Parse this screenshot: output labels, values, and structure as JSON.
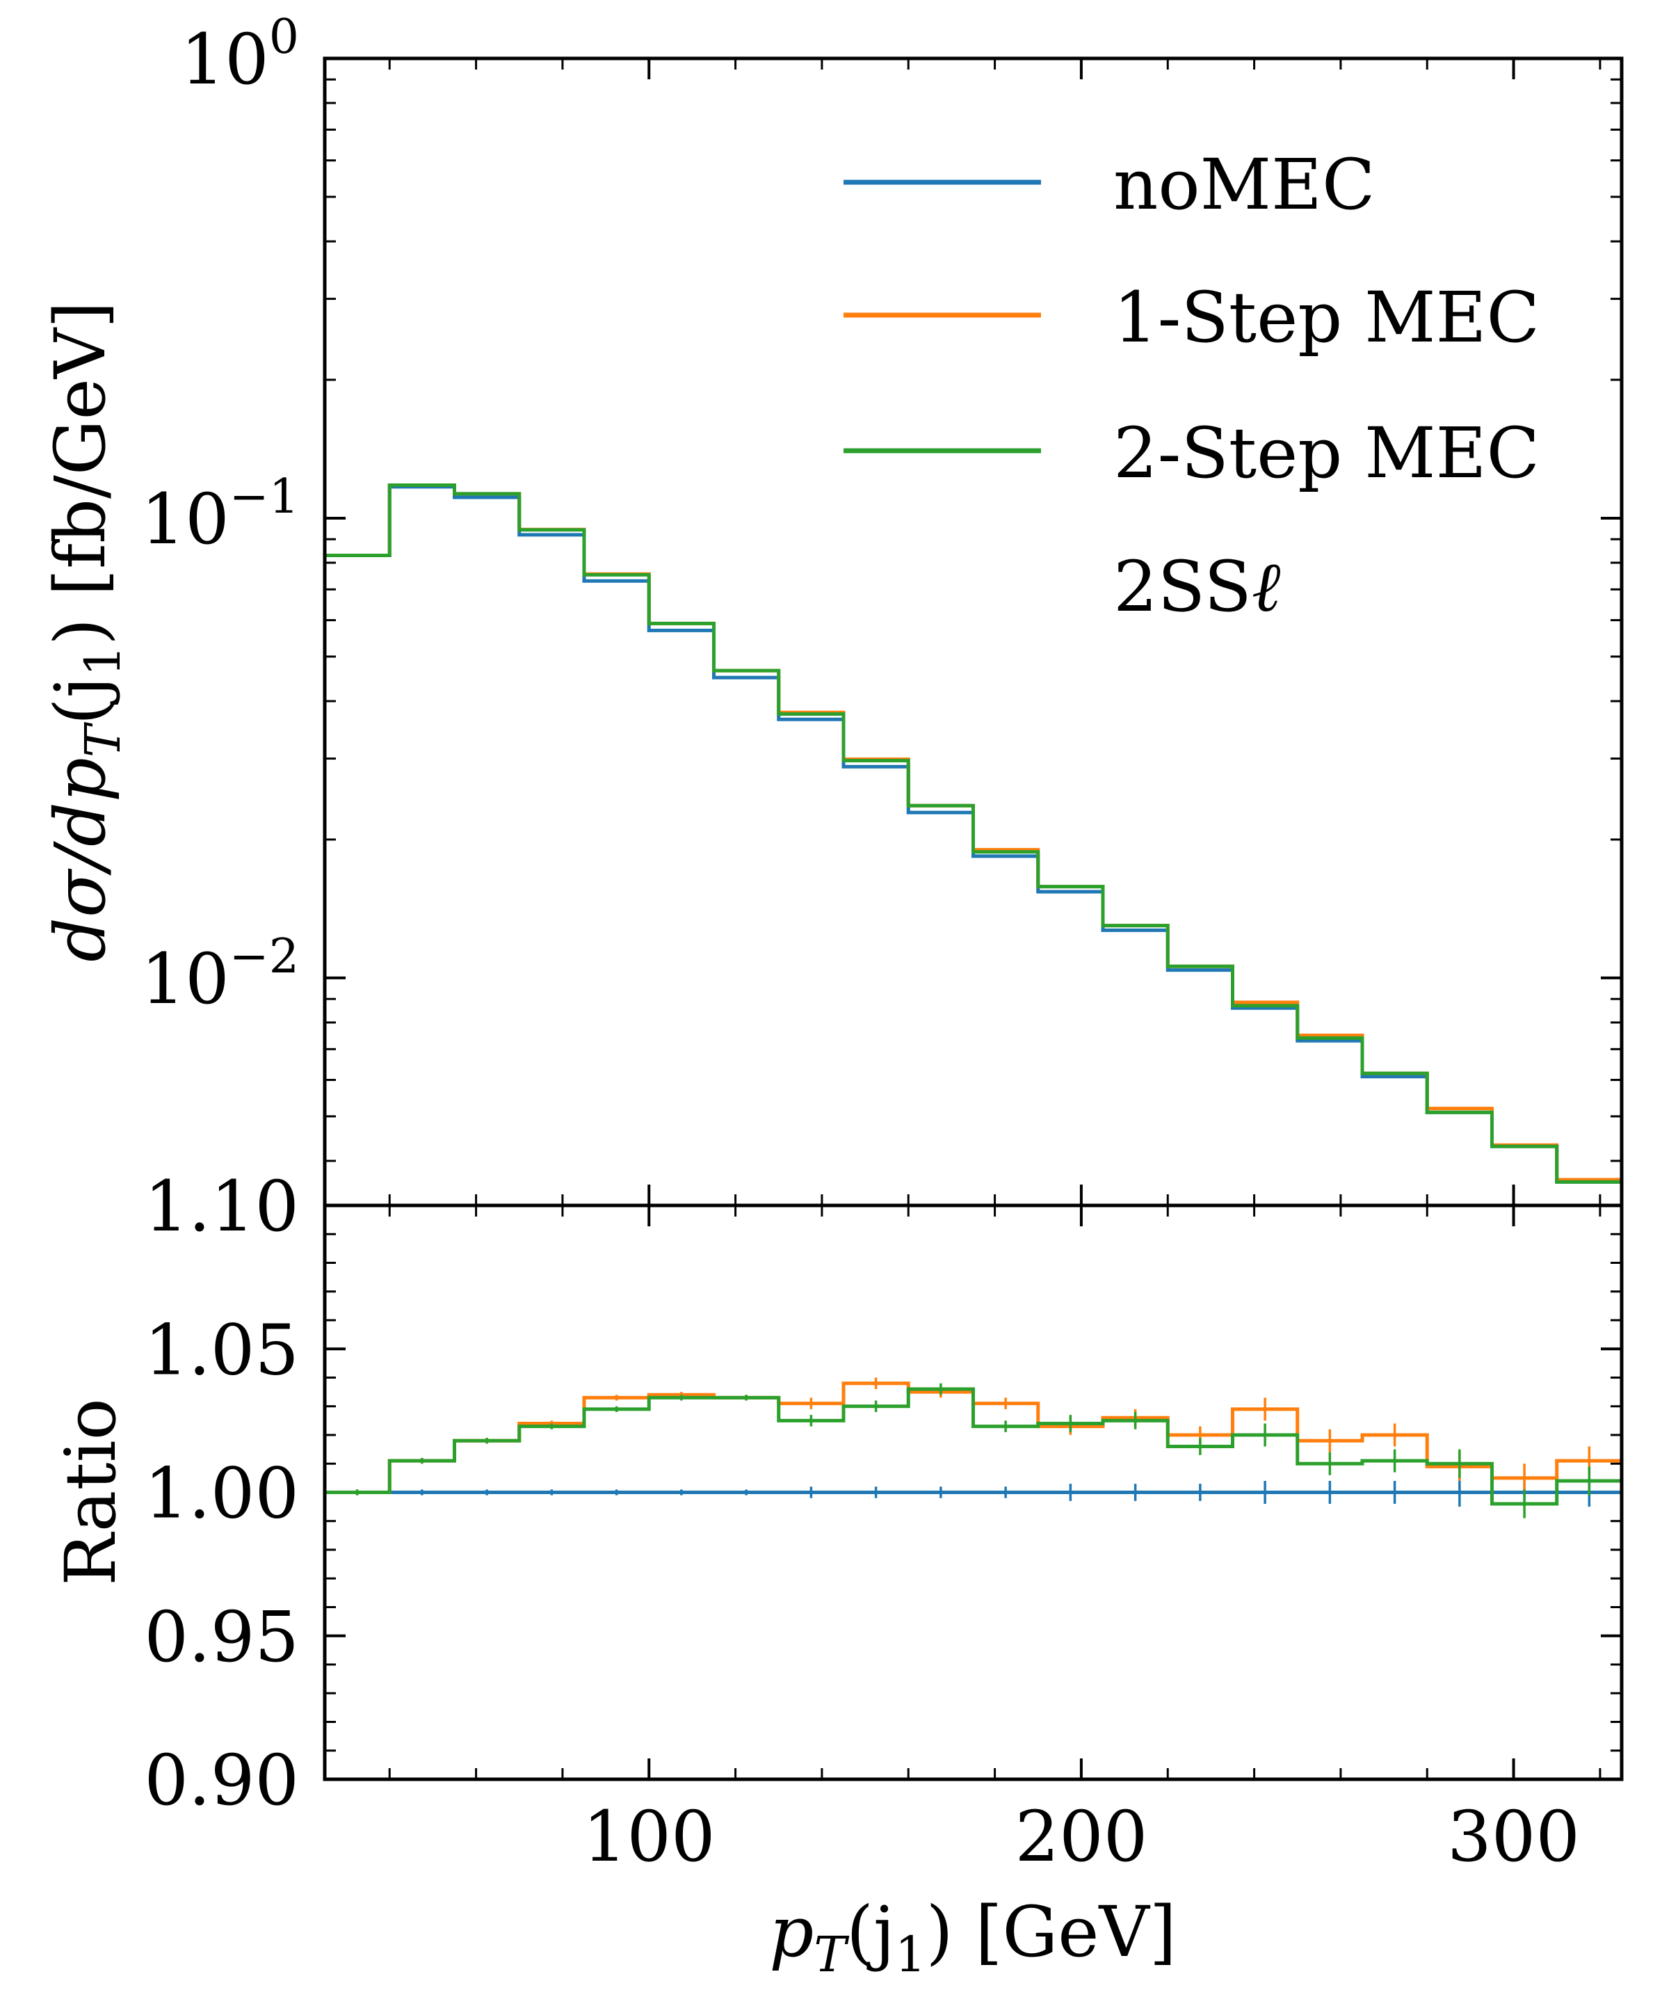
{
  "colors": {
    "noMEC": "#1f77b4",
    "one_step": "#ff7f0e",
    "two_step": "#2ca02c"
  },
  "chart_data": [
    {
      "type": "line",
      "drawstyle": "steps",
      "title": "",
      "xlabel_main": "p",
      "xlabel_sub": "T",
      "xlabel_rest": "(j",
      "xlabel_sub2": "1",
      "xlabel_unit": ") [GeV]",
      "ylabel": "dσ/dp",
      "ylabel_sub": "T",
      "ylabel_rest": "(j",
      "ylabel_sub2": "1",
      "ylabel_unit": ") [fb/GeV]",
      "yscale": "log",
      "xlim": [
        25,
        325
      ],
      "ylim": [
        0.0032,
        1.0
      ],
      "xticks": [
        100,
        200,
        300
      ],
      "ytick_base": "10",
      "yticks": [
        {
          "value": 1.0,
          "exp": "0"
        },
        {
          "value": 0.1,
          "exp": "−1"
        },
        {
          "value": 0.01,
          "exp": "−2"
        }
      ],
      "bin_edges": [
        25,
        40,
        55,
        70,
        85,
        100,
        115,
        130,
        145,
        160,
        175,
        190,
        205,
        220,
        235,
        250,
        265,
        280,
        295,
        310,
        325
      ],
      "legend": {
        "placement": "top-right",
        "entries": [
          "noMEC",
          "1-Step MEC",
          "2-Step MEC"
        ],
        "extra_text": "2SS",
        "extra_symbol": "ℓ"
      },
      "series": [
        {
          "name": "noMEC",
          "values": [
            0.083,
            0.117,
            0.111,
            0.092,
            0.073,
            0.057,
            0.045,
            0.0365,
            0.0288,
            0.0229,
            0.0184,
            0.0154,
            0.0127,
            0.0104,
            0.0086,
            0.0073,
            0.0061,
            0.0051,
            0.0043,
            0.0036
          ]
        },
        {
          "name": "1-Step MEC",
          "values": [
            0.083,
            0.118,
            0.113,
            0.0945,
            0.0756,
            0.059,
            0.0466,
            0.0378,
            0.0299,
            0.0237,
            0.019,
            0.0158,
            0.013,
            0.0106,
            0.00885,
            0.0075,
            0.0062,
            0.0052,
            0.00433,
            0.00364
          ]
        },
        {
          "name": "2-Step MEC",
          "values": [
            0.083,
            0.118,
            0.113,
            0.0943,
            0.0753,
            0.059,
            0.0466,
            0.0375,
            0.0297,
            0.0237,
            0.0188,
            0.0158,
            0.013,
            0.0106,
            0.0087,
            0.0074,
            0.0062,
            0.0051,
            0.0043,
            0.0036
          ]
        }
      ]
    },
    {
      "type": "line",
      "drawstyle": "steps",
      "title": "",
      "xlabel": "",
      "ylabel": "Ratio",
      "xlim": [
        25,
        325
      ],
      "ylim": [
        0.9,
        1.1
      ],
      "yticks": [
        "0.90",
        "0.95",
        "1.00",
        "1.05",
        "1.10"
      ],
      "bin_edges": [
        25,
        40,
        55,
        70,
        85,
        100,
        115,
        130,
        145,
        160,
        175,
        190,
        205,
        220,
        235,
        250,
        265,
        280,
        295,
        310,
        325
      ],
      "series": [
        {
          "name": "noMEC",
          "values": [
            1.0,
            1.0,
            1.0,
            1.0,
            1.0,
            1.0,
            1.0,
            1.0,
            1.0,
            1.0,
            1.0,
            1.0,
            1.0,
            1.0,
            1.0,
            1.0,
            1.0,
            1.0,
            1.0,
            1.0
          ],
          "errors": [
            0.001,
            0.001,
            0.001,
            0.001,
            0.001,
            0.001,
            0.001,
            0.002,
            0.002,
            0.002,
            0.002,
            0.003,
            0.003,
            0.003,
            0.004,
            0.004,
            0.004,
            0.005,
            0.005,
            0.005
          ]
        },
        {
          "name": "1-Step MEC",
          "values": [
            1.0,
            1.011,
            1.018,
            1.024,
            1.033,
            1.034,
            1.033,
            1.031,
            1.038,
            1.035,
            1.031,
            1.023,
            1.026,
            1.02,
            1.029,
            1.018,
            1.02,
            1.009,
            1.005,
            1.011
          ],
          "errors": [
            0.001,
            0.001,
            0.001,
            0.001,
            0.001,
            0.001,
            0.001,
            0.002,
            0.002,
            0.002,
            0.002,
            0.003,
            0.003,
            0.003,
            0.004,
            0.004,
            0.004,
            0.005,
            0.005,
            0.005
          ]
        },
        {
          "name": "2-Step MEC",
          "values": [
            1.0,
            1.011,
            1.018,
            1.023,
            1.029,
            1.033,
            1.033,
            1.025,
            1.03,
            1.036,
            1.023,
            1.024,
            1.025,
            1.016,
            1.02,
            1.01,
            1.011,
            1.01,
            0.996,
            1.004
          ],
          "errors": [
            0.001,
            0.001,
            0.001,
            0.001,
            0.001,
            0.001,
            0.001,
            0.002,
            0.002,
            0.002,
            0.002,
            0.003,
            0.003,
            0.003,
            0.004,
            0.004,
            0.004,
            0.005,
            0.005,
            0.005
          ]
        }
      ]
    }
  ]
}
